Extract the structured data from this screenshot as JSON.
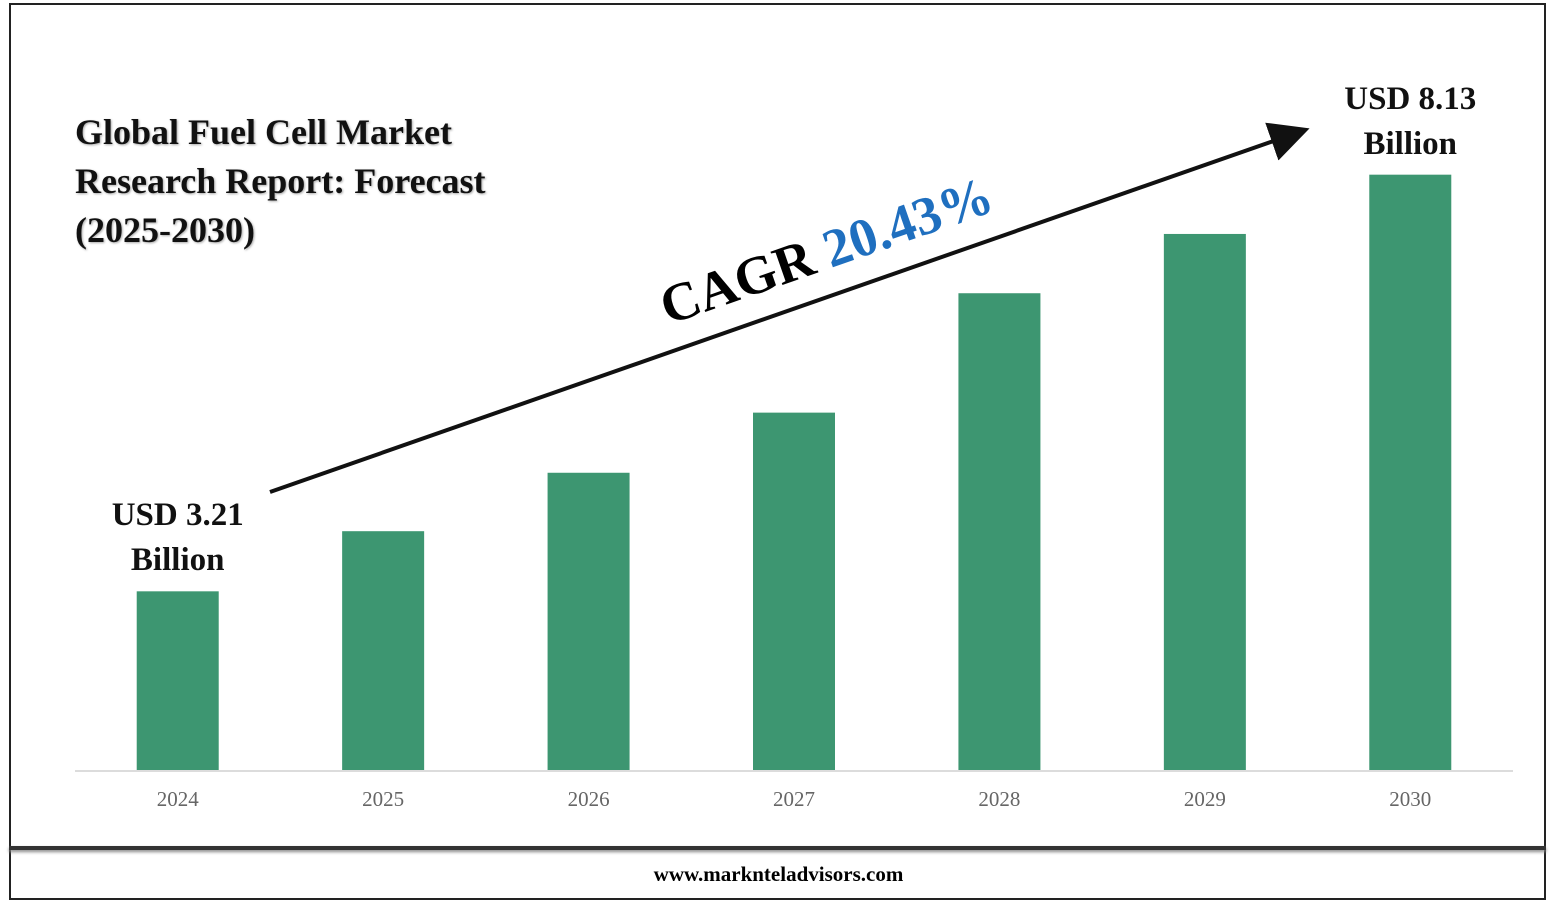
{
  "chart_data": {
    "type": "bar",
    "title": "Global Fuel Cell Market Research Report: Forecast (2025-2030)",
    "categories": [
      "2024",
      "2025",
      "2026",
      "2027",
      "2028",
      "2029",
      "2030"
    ],
    "values": [
      3.21,
      3.92,
      4.61,
      5.32,
      6.73,
      7.43,
      8.13
    ],
    "value_labels": [
      "USD 3.21 Billion",
      null,
      null,
      null,
      null,
      null,
      "USD 8.13 Billion"
    ],
    "color": "#3d9671",
    "ylim": [
      1.1,
      9.0
    ],
    "annotation": {
      "text": "CAGR",
      "value": 20.43,
      "value_label": "20.43%",
      "value_color": "#1f6fbf"
    },
    "footer": "www.marknteladvisors.com"
  }
}
